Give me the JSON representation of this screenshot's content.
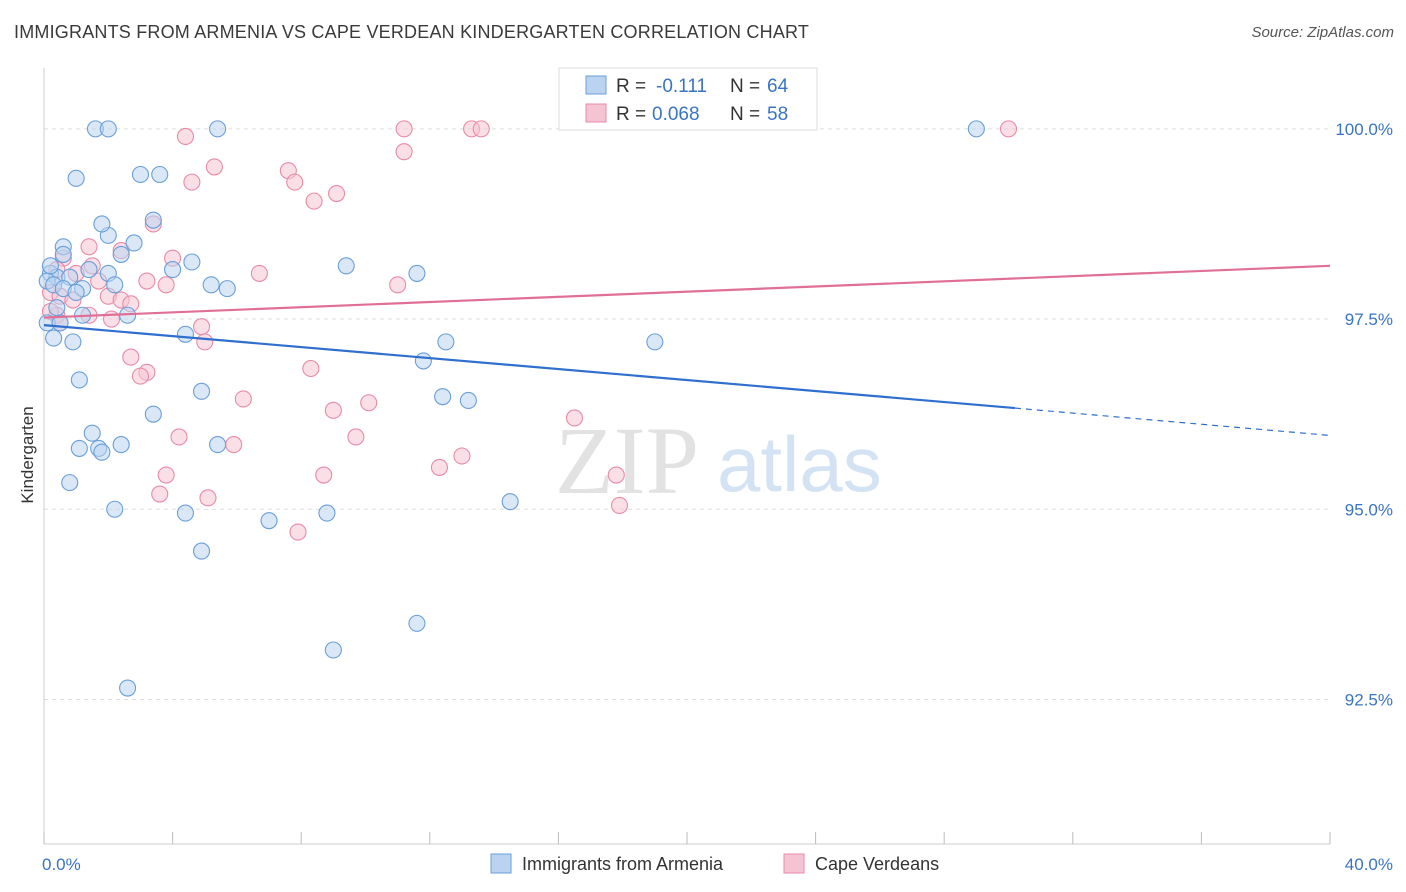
{
  "title": "IMMIGRANTS FROM ARMENIA VS CAPE VERDEAN KINDERGARTEN CORRELATION CHART",
  "source": "Source: ZipAtlas.com",
  "watermark": {
    "zip": "ZIP",
    "atlas": "atlas"
  },
  "colors": {
    "blue": "#6a9fd8",
    "blue_fill": "#b9d3f0",
    "blue_line": "#2f6fce",
    "pink": "#e88aa8",
    "pink_fill": "#f5c4d3",
    "pink_line": "#e06f95",
    "axis_text": "#3a74c4",
    "grid": "#dddddd"
  },
  "chart_data": {
    "type": "scatter",
    "ylabel": "Kindergarten",
    "xlim": [
      0,
      40
    ],
    "ylim": [
      90.6,
      100.8
    ],
    "x_tick_labels": [
      "0.0%",
      "40.0%"
    ],
    "y_ticks": [
      {
        "value": 100.0,
        "label": "100.0%"
      },
      {
        "value": 97.5,
        "label": "97.5%"
      },
      {
        "value": 95.0,
        "label": "95.0%"
      },
      {
        "value": 92.5,
        "label": "92.5%"
      }
    ],
    "grid": true,
    "legend_position": "bottom",
    "stats": [
      {
        "r_label": "R =",
        "r_value": "-0.111",
        "n_label": "N =",
        "n_value": "64"
      },
      {
        "r_label": "R =",
        "r_value": "0.068",
        "n_label": "N =",
        "n_value": "58"
      }
    ],
    "series": [
      {
        "name": "Immigrants from Armenia",
        "color": "blue",
        "trend": {
          "x0": 0,
          "y0": 97.42,
          "x1": 30.2,
          "y1": 96.33,
          "x_dash_end": 40,
          "y_dash_end": 95.97
        },
        "points": [
          [
            1.6,
            100.0
          ],
          [
            2.0,
            100.0
          ],
          [
            5.4,
            100.0
          ],
          [
            29.0,
            100.0
          ],
          [
            1.0,
            99.35
          ],
          [
            3.6,
            99.4
          ],
          [
            3.0,
            99.4
          ],
          [
            2.0,
            98.6
          ],
          [
            1.8,
            98.75
          ],
          [
            3.4,
            98.8
          ],
          [
            0.6,
            98.45
          ],
          [
            0.6,
            98.35
          ],
          [
            2.8,
            98.5
          ],
          [
            2.4,
            98.35
          ],
          [
            0.2,
            98.1
          ],
          [
            0.4,
            98.05
          ],
          [
            0.8,
            98.05
          ],
          [
            1.4,
            98.15
          ],
          [
            2.0,
            98.1
          ],
          [
            4.0,
            98.15
          ],
          [
            4.6,
            98.25
          ],
          [
            9.4,
            98.2
          ],
          [
            11.6,
            98.1
          ],
          [
            0.1,
            98.0
          ],
          [
            0.3,
            97.95
          ],
          [
            0.6,
            97.9
          ],
          [
            1.2,
            97.9
          ],
          [
            2.2,
            97.95
          ],
          [
            5.2,
            97.95
          ],
          [
            5.7,
            97.9
          ],
          [
            0.1,
            97.45
          ],
          [
            0.5,
            97.45
          ],
          [
            1.2,
            97.55
          ],
          [
            2.6,
            97.55
          ],
          [
            0.3,
            97.25
          ],
          [
            0.9,
            97.2
          ],
          [
            4.4,
            97.3
          ],
          [
            12.5,
            97.2
          ],
          [
            19.0,
            97.2
          ],
          [
            1.1,
            96.7
          ],
          [
            4.9,
            96.55
          ],
          [
            11.8,
            96.95
          ],
          [
            12.4,
            96.48
          ],
          [
            13.2,
            96.43
          ],
          [
            3.4,
            96.25
          ],
          [
            1.5,
            96.0
          ],
          [
            1.1,
            95.8
          ],
          [
            1.7,
            95.8
          ],
          [
            2.4,
            95.85
          ],
          [
            5.4,
            95.85
          ],
          [
            1.8,
            95.75
          ],
          [
            0.8,
            95.35
          ],
          [
            2.2,
            95.0
          ],
          [
            4.4,
            94.95
          ],
          [
            7.0,
            94.85
          ],
          [
            8.8,
            94.95
          ],
          [
            14.5,
            95.1
          ],
          [
            4.9,
            94.45
          ],
          [
            11.6,
            93.5
          ],
          [
            9.0,
            93.15
          ],
          [
            2.6,
            92.65
          ],
          [
            0.2,
            98.2
          ],
          [
            1.0,
            97.85
          ],
          [
            0.4,
            97.65
          ]
        ]
      },
      {
        "name": "Cape Verdeans",
        "color": "pink",
        "trend": {
          "x0": 0,
          "y0": 97.52,
          "x1": 40,
          "y1": 98.2
        },
        "points": [
          [
            4.4,
            99.9
          ],
          [
            11.2,
            100.0
          ],
          [
            13.3,
            100.0
          ],
          [
            13.6,
            100.0
          ],
          [
            30.0,
            100.0
          ],
          [
            11.2,
            99.7
          ],
          [
            5.3,
            99.5
          ],
          [
            7.6,
            99.45
          ],
          [
            7.8,
            99.3
          ],
          [
            4.6,
            99.3
          ],
          [
            9.1,
            99.15
          ],
          [
            8.4,
            99.05
          ],
          [
            3.4,
            98.75
          ],
          [
            2.4,
            98.4
          ],
          [
            1.4,
            98.45
          ],
          [
            0.6,
            98.3
          ],
          [
            4.0,
            98.3
          ],
          [
            0.4,
            98.15
          ],
          [
            1.5,
            98.2
          ],
          [
            6.7,
            98.1
          ],
          [
            1.7,
            98.0
          ],
          [
            3.8,
            97.95
          ],
          [
            11.0,
            97.95
          ],
          [
            0.2,
            97.85
          ],
          [
            0.5,
            97.8
          ],
          [
            0.9,
            97.75
          ],
          [
            2.0,
            97.8
          ],
          [
            2.4,
            97.75
          ],
          [
            2.7,
            97.7
          ],
          [
            0.4,
            97.55
          ],
          [
            1.4,
            97.55
          ],
          [
            2.1,
            97.5
          ],
          [
            4.9,
            97.4
          ],
          [
            0.5,
            97.45
          ],
          [
            5.0,
            97.2
          ],
          [
            2.7,
            97.0
          ],
          [
            3.2,
            96.8
          ],
          [
            3.0,
            96.75
          ],
          [
            8.3,
            96.85
          ],
          [
            6.2,
            96.45
          ],
          [
            9.0,
            96.3
          ],
          [
            10.1,
            96.4
          ],
          [
            16.5,
            96.2
          ],
          [
            4.2,
            95.95
          ],
          [
            5.9,
            95.85
          ],
          [
            9.7,
            95.95
          ],
          [
            12.3,
            95.55
          ],
          [
            13.0,
            95.7
          ],
          [
            17.8,
            95.45
          ],
          [
            3.8,
            95.45
          ],
          [
            8.7,
            95.45
          ],
          [
            3.6,
            95.2
          ],
          [
            5.1,
            95.15
          ],
          [
            17.9,
            95.05
          ],
          [
            7.9,
            94.7
          ],
          [
            0.2,
            97.6
          ],
          [
            1.0,
            98.1
          ],
          [
            3.2,
            98.0
          ]
        ]
      }
    ]
  }
}
